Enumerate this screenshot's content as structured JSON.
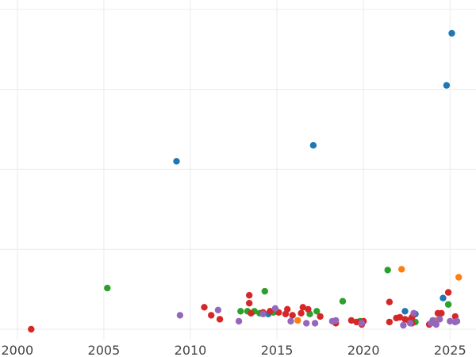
{
  "chart_data": {
    "type": "scatter",
    "title": "",
    "xlabel": "",
    "ylabel": "",
    "xlim": [
      1999.0,
      2026.5
    ],
    "ylim": [
      0,
      10
    ],
    "x_ticks": [
      2000,
      2005,
      2010,
      2015,
      2020,
      2025
    ],
    "x_tick_labels": [
      "2000",
      "2005",
      "2010",
      "2015",
      "2020",
      "2025"
    ],
    "y_ticks": [
      0,
      2,
      4,
      6,
      8,
      10
    ],
    "grid": true,
    "legend": "none",
    "series": [
      {
        "color": "#1f77b4",
        "points": [
          [
            2009.2,
            4.2
          ],
          [
            2017.1,
            4.6
          ],
          [
            2024.8,
            6.1
          ],
          [
            2025.1,
            7.4
          ],
          [
            2024.6,
            0.78
          ],
          [
            2023.0,
            0.38
          ],
          [
            2014.5,
            0.38
          ],
          [
            2022.4,
            0.45
          ]
        ]
      },
      {
        "color": "#ff7f0e",
        "points": [
          [
            2022.2,
            1.5
          ],
          [
            2025.5,
            1.3
          ],
          [
            2024.2,
            0.22
          ],
          [
            2016.2,
            0.22
          ]
        ]
      },
      {
        "color": "#2ca02c",
        "points": [
          [
            2005.2,
            1.03
          ],
          [
            2014.3,
            0.95
          ],
          [
            2018.8,
            0.7
          ],
          [
            2021.4,
            1.48
          ],
          [
            2024.9,
            0.62
          ],
          [
            2012.9,
            0.45
          ],
          [
            2013.3,
            0.45
          ],
          [
            2013.7,
            0.45
          ],
          [
            2014.0,
            0.4
          ],
          [
            2016.9,
            0.38
          ],
          [
            2017.3,
            0.45
          ],
          [
            2019.8,
            0.2
          ],
          [
            2023.0,
            0.18
          ],
          [
            2014.8,
            0.42
          ]
        ]
      },
      {
        "color": "#d62728",
        "points": [
          [
            2000.8,
            0.0
          ],
          [
            2010.8,
            0.55
          ],
          [
            2011.2,
            0.35
          ],
          [
            2011.7,
            0.25
          ],
          [
            2013.4,
            0.85
          ],
          [
            2013.4,
            0.65
          ],
          [
            2013.5,
            0.4
          ],
          [
            2014.2,
            0.42
          ],
          [
            2014.6,
            0.45
          ],
          [
            2015.1,
            0.42
          ],
          [
            2015.5,
            0.38
          ],
          [
            2015.6,
            0.5
          ],
          [
            2015.9,
            0.35
          ],
          [
            2016.4,
            0.4
          ],
          [
            2016.5,
            0.55
          ],
          [
            2016.8,
            0.5
          ],
          [
            2017.5,
            0.32
          ],
          [
            2018.4,
            0.15
          ],
          [
            2019.3,
            0.22
          ],
          [
            2019.6,
            0.18
          ],
          [
            2019.9,
            0.12
          ],
          [
            2020.0,
            0.2
          ],
          [
            2021.5,
            0.68
          ],
          [
            2021.5,
            0.18
          ],
          [
            2021.9,
            0.28
          ],
          [
            2022.1,
            0.3
          ],
          [
            2022.4,
            0.25
          ],
          [
            2022.6,
            0.22
          ],
          [
            2022.8,
            0.3
          ],
          [
            2022.8,
            0.15
          ],
          [
            2023.8,
            0.12
          ],
          [
            2024.3,
            0.4
          ],
          [
            2024.5,
            0.4
          ],
          [
            2024.9,
            0.92
          ],
          [
            2025.3,
            0.32
          ]
        ]
      },
      {
        "color": "#9467bd",
        "points": [
          [
            2009.4,
            0.35
          ],
          [
            2011.6,
            0.48
          ],
          [
            2012.8,
            0.2
          ],
          [
            2014.2,
            0.38
          ],
          [
            2014.9,
            0.52
          ],
          [
            2015.8,
            0.2
          ],
          [
            2016.7,
            0.15
          ],
          [
            2017.2,
            0.15
          ],
          [
            2018.2,
            0.2
          ],
          [
            2018.4,
            0.22
          ],
          [
            2019.9,
            0.15
          ],
          [
            2022.3,
            0.1
          ],
          [
            2022.7,
            0.15
          ],
          [
            2022.9,
            0.4
          ],
          [
            2023.9,
            0.15
          ],
          [
            2024.0,
            0.22
          ],
          [
            2024.2,
            0.12
          ],
          [
            2024.4,
            0.25
          ],
          [
            2025.0,
            0.2
          ],
          [
            2025.3,
            0.18
          ],
          [
            2025.4,
            0.2
          ]
        ]
      }
    ]
  }
}
